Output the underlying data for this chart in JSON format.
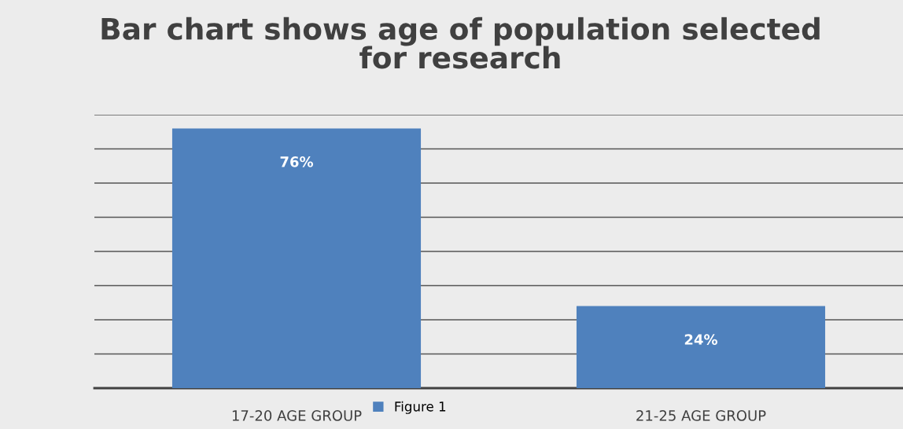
{
  "chart_data": {
    "type": "bar",
    "title": "Bar chart shows age of population selected\nfor research",
    "categories": [
      "17-20 AGE GROUP",
      "21-25 AGE GROUP"
    ],
    "series": [
      {
        "name": "Figure 1",
        "color": "#4f81bd",
        "values": [
          76,
          24
        ],
        "value_labels": [
          "76%",
          "24%"
        ]
      }
    ],
    "ylim": [
      0,
      80
    ],
    "yticks": [
      {
        "value": 0,
        "label": null
      },
      {
        "value": 10,
        "label": null
      },
      {
        "value": 20,
        "label": null
      },
      {
        "value": 30,
        "label": null
      },
      {
        "value": 40,
        "label": null
      },
      {
        "value": 50,
        "label": null
      },
      {
        "value": 60,
        "label": null
      },
      {
        "value": 70,
        "label": null
      },
      {
        "value": 80,
        "label": null
      }
    ],
    "tick_labels": "x",
    "grid": "y",
    "legend": "bottom"
  }
}
